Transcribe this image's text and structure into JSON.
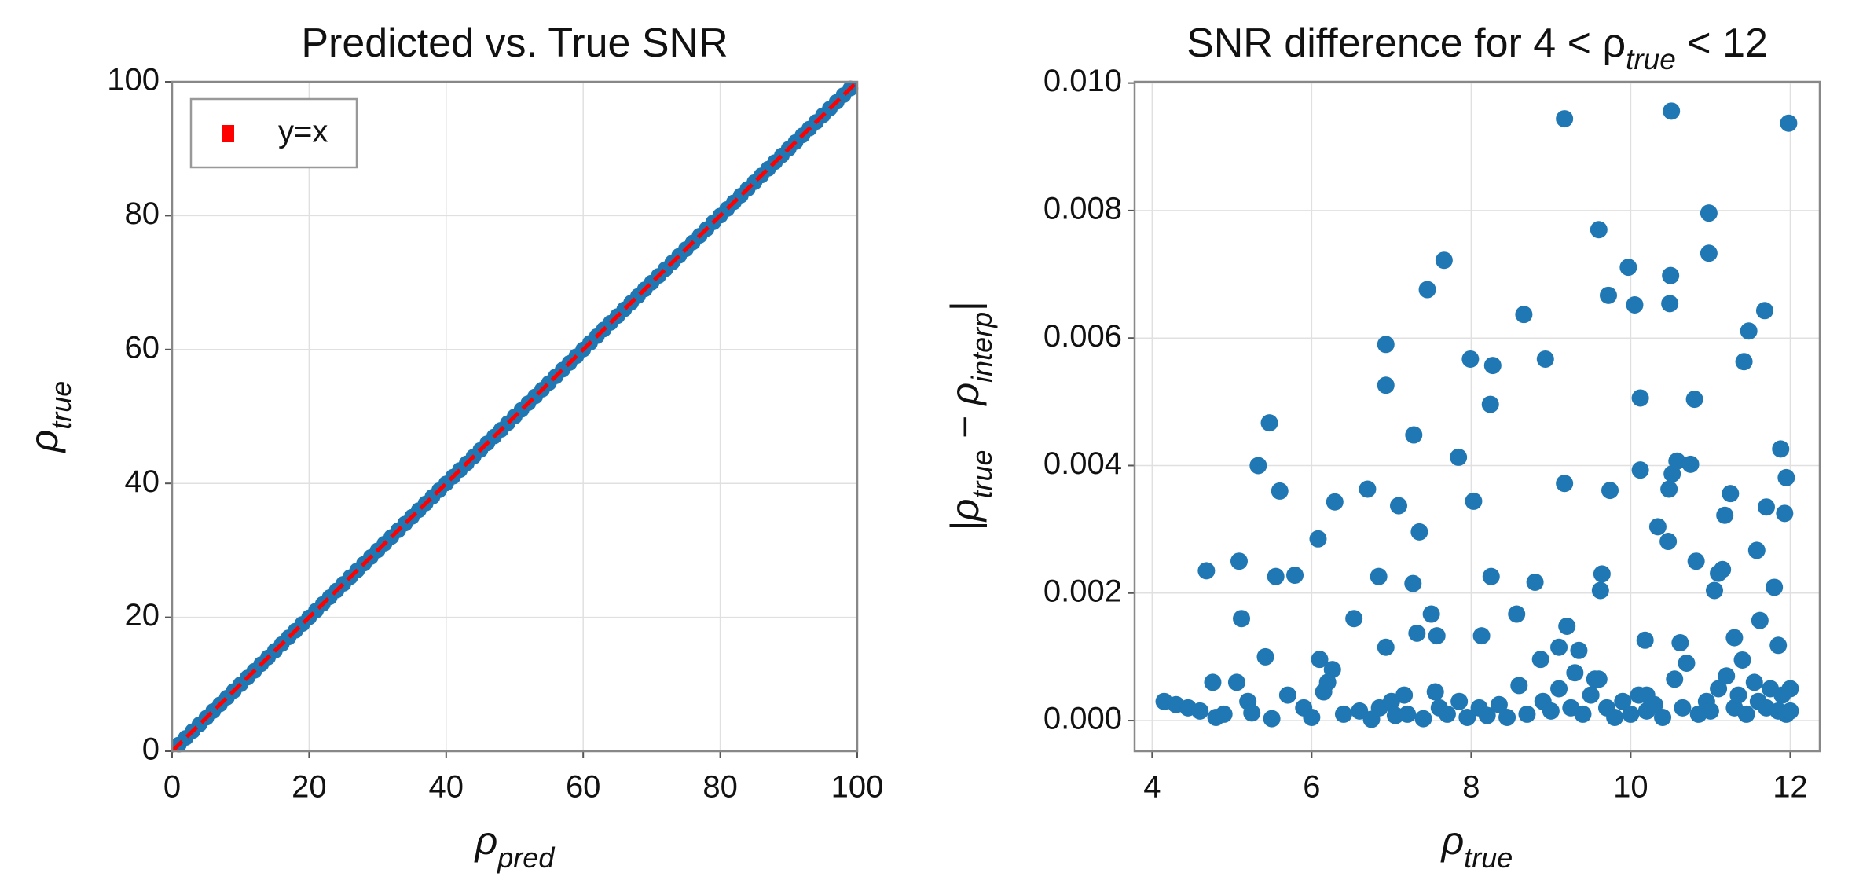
{
  "chart_data": [
    {
      "type": "scatter",
      "title": [
        "Predicted vs. True SNR"
      ],
      "xlabel": [
        "ρ",
        "pred"
      ],
      "ylabel": [
        "ρ",
        "true"
      ],
      "xlim": [
        0,
        100
      ],
      "ylim": [
        0,
        100
      ],
      "xticks": [
        0,
        20,
        40,
        60,
        80,
        100
      ],
      "yticks": [
        0,
        20,
        40,
        60,
        80,
        100
      ],
      "grid": true,
      "legend": "upper left",
      "series": [
        {
          "color": "#1f77b4",
          "x": [
            1,
            2,
            3,
            4,
            5,
            6,
            7,
            8,
            9,
            10,
            11,
            12,
            13,
            14,
            15,
            16,
            17,
            18,
            19,
            20,
            21,
            22,
            23,
            24,
            25,
            26,
            27,
            28,
            29,
            30,
            31,
            32,
            33,
            34,
            35,
            36,
            37,
            38,
            39,
            40,
            41,
            42,
            43,
            44,
            45,
            46,
            47,
            48,
            49,
            50,
            51,
            52,
            53,
            54,
            55,
            56,
            57,
            58,
            59,
            60,
            61,
            62,
            63,
            64,
            65,
            66,
            67,
            68,
            69,
            70,
            71,
            72,
            73,
            74,
            75,
            76,
            77,
            78,
            79,
            80,
            81,
            82,
            83,
            84,
            85,
            86,
            87,
            88,
            89,
            90,
            91,
            92,
            93,
            94,
            95,
            96,
            97,
            98,
            99
          ],
          "y": [
            1,
            2,
            3,
            4,
            5,
            6,
            7,
            8,
            9,
            10,
            11,
            12,
            13,
            14,
            15,
            16,
            17,
            18,
            19,
            20,
            21,
            22,
            23,
            24,
            25,
            26,
            27,
            28,
            29,
            30,
            31,
            32,
            33,
            34,
            35,
            36,
            37,
            38,
            39,
            40,
            41,
            42,
            43,
            44,
            45,
            46,
            47,
            48,
            49,
            50,
            51,
            52,
            53,
            54,
            55,
            56,
            57,
            58,
            59,
            60,
            61,
            62,
            63,
            64,
            65,
            66,
            67,
            68,
            69,
            70,
            71,
            72,
            73,
            74,
            75,
            76,
            77,
            78,
            79,
            80,
            81,
            82,
            83,
            84,
            85,
            86,
            87,
            88,
            89,
            90,
            91,
            92,
            93,
            94,
            95,
            96,
            97,
            98,
            99
          ]
        },
        {
          "name": "y=x",
          "type": "line",
          "color": "red",
          "dashed": true,
          "x": [
            0,
            100
          ],
          "y": [
            0,
            100
          ]
        }
      ]
    },
    {
      "type": "scatter",
      "title": [
        "SNR difference for 4 < ρ",
        "true",
        " < 12"
      ],
      "xlabel": [
        "ρ",
        "true"
      ],
      "ylabel": [
        "|ρ",
        "true",
        " − ρ",
        "interp",
        "|"
      ],
      "xlim": [
        3.78,
        12.37
      ],
      "ylim": [
        -0.00048,
        0.01002
      ],
      "xticks": [
        4,
        6,
        8,
        10,
        12
      ],
      "yticks": [
        {
          "value": 0,
          "label": "0.000"
        },
        0.002,
        0.004,
        0.006,
        0.008,
        {
          "value": 0.01,
          "label": "0.010"
        }
      ],
      "grid": true,
      "series": [
        {
          "color": "#1f77b4",
          "x": [
            4.15,
            4.68,
            4.76,
            5.09,
            5.06,
            5.12,
            5.33,
            5.42,
            5.47,
            5.55,
            5.6,
            5.79,
            6.08,
            6.1,
            6.29,
            6.26,
            6.53,
            6.7,
            6.84,
            6.93,
            6.93,
            6.93,
            7.09,
            7.16,
            7.27,
            7.28,
            7.32,
            7.35,
            7.45,
            7.5,
            7.57,
            7.66,
            7.84,
            7.99,
            8.03,
            8.13,
            8.24,
            8.25,
            8.27,
            8.57,
            8.66,
            8.8,
            8.93,
            8.87,
            9.17,
            9.17,
            9.2,
            9.6,
            9.62,
            9.64,
            9.72,
            9.74,
            9.97,
            10.05,
            10.12,
            10.12,
            10.18,
            10.34,
            10.47,
            10.49,
            10.5,
            10.51,
            10.48,
            10.52,
            10.58,
            10.62,
            10.8,
            10.75,
            10.82,
            10.98,
            10.98,
            11.05,
            11.1,
            11.18,
            11.25,
            11.15,
            11.42,
            11.48,
            11.58,
            11.68,
            11.7,
            11.8,
            11.85,
            11.88,
            11.95,
            11.98,
            11.62,
            11.93,
            4.3,
            4.45,
            4.6,
            4.8,
            4.9,
            5.2,
            5.25,
            5.5,
            5.7,
            5.9,
            6.0,
            6.15,
            6.2,
            6.4,
            6.6,
            6.75,
            6.85,
            7.0,
            7.05,
            7.2,
            7.4,
            7.55,
            7.6,
            7.7,
            7.85,
            7.95,
            8.1,
            8.2,
            8.35,
            8.45,
            8.6,
            8.7,
            8.9,
            9.0,
            9.1,
            9.25,
            9.3,
            9.4,
            9.5,
            9.55,
            9.7,
            9.8,
            9.9,
            10.0,
            10.1,
            10.2,
            10.3,
            10.4,
            10.55,
            10.65,
            10.7,
            10.85,
            10.95,
            11.0,
            11.1,
            11.2,
            11.3,
            11.35,
            11.45,
            11.55,
            11.6,
            11.7,
            11.75,
            11.85,
            11.9,
            11.95,
            12.0,
            12.0,
            11.4,
            11.3,
            9.1,
            9.35,
            9.6,
            10.2
          ],
          "y": [
            0.0003,
            0.00235,
            0.0006,
            0.0025,
            0.0006,
            0.0016,
            0.004,
            0.001,
            0.00467,
            0.00226,
            0.0036,
            0.00228,
            0.00285,
            0.00096,
            0.00343,
            0.0008,
            0.0016,
            0.00363,
            0.00226,
            0.0059,
            0.00526,
            0.00115,
            0.00337,
            0.0004,
            0.00215,
            0.00448,
            0.00137,
            0.00296,
            0.00676,
            0.00167,
            0.00133,
            0.00722,
            0.00413,
            0.00567,
            0.00344,
            0.00133,
            0.00496,
            0.00226,
            0.00557,
            0.00167,
            0.00637,
            0.00217,
            0.00567,
            0.00096,
            0.00944,
            0.00372,
            0.00148,
            0.0077,
            0.00204,
            0.0023,
            0.00667,
            0.00361,
            0.00711,
            0.00652,
            0.00506,
            0.00393,
            0.00126,
            0.00304,
            0.00281,
            0.00654,
            0.00698,
            0.00956,
            0.00363,
            0.00387,
            0.00407,
            0.00122,
            0.00504,
            0.00402,
            0.0025,
            0.00796,
            0.00733,
            0.00204,
            0.00231,
            0.00322,
            0.00356,
            0.00237,
            0.00563,
            0.00611,
            0.00267,
            0.00643,
            0.00335,
            0.00209,
            0.00118,
            0.00426,
            0.00381,
            0.00937,
            0.00157,
            0.00325,
            0.00025,
            0.0002,
            0.00015,
            5e-05,
            0.0001,
            0.0003,
            0.00012,
            3e-05,
            0.0004,
            0.0002,
            5e-05,
            0.00045,
            0.0006,
            0.0001,
            0.00015,
            2e-05,
            0.0002,
            0.0003,
            8e-05,
            0.0001,
            3e-05,
            0.00045,
            0.0002,
            0.0001,
            0.0003,
            5e-05,
            0.0002,
            8e-05,
            0.00025,
            5e-05,
            0.00055,
            0.0001,
            0.0003,
            0.00015,
            0.0005,
            0.0002,
            0.00075,
            0.0001,
            0.0004,
            0.00065,
            0.0002,
            5e-05,
            0.0003,
            0.0001,
            0.0004,
            0.00015,
            0.00025,
            5e-05,
            0.00065,
            0.0002,
            0.0009,
            0.0001,
            0.0003,
            0.00015,
            0.0005,
            0.0007,
            0.0002,
            0.0004,
            0.0001,
            0.0006,
            0.0003,
            0.0002,
            0.0005,
            0.00015,
            0.0004,
            0.0001,
            0.0005,
            0.00015,
            0.00095,
            0.0013,
            0.00115,
            0.0011,
            0.00065,
            0.0004
          ]
        }
      ]
    }
  ]
}
